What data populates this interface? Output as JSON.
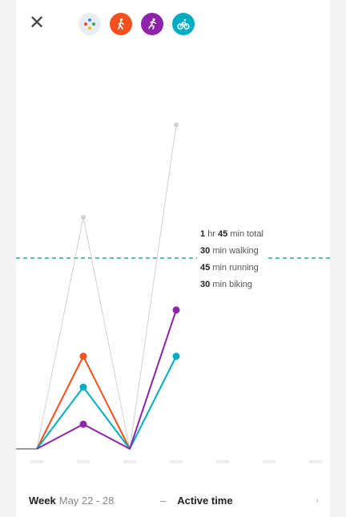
{
  "header": {
    "close_glyph": "✕",
    "filters": [
      {
        "name": "all-activities",
        "color": "#e8edf3",
        "icon": "dots-icon"
      },
      {
        "name": "walking",
        "color": "#f4511e",
        "icon": "walking-icon"
      },
      {
        "name": "running",
        "color": "#8e24aa",
        "icon": "running-icon"
      },
      {
        "name": "biking",
        "color": "#00acc1",
        "icon": "biking-icon"
      }
    ]
  },
  "chart_data": {
    "type": "line",
    "title": "",
    "xlabel": "",
    "ylabel": "",
    "categories": [
      "",
      "",
      "",
      "",
      "",
      "",
      ""
    ],
    "series": [
      {
        "color": "#f4511e",
        "values": [
          0,
          30,
          0,
          null,
          null,
          null,
          null
        ]
      },
      {
        "color": "#00acc1",
        "values": [
          0,
          20,
          0,
          30,
          null,
          null,
          null
        ]
      },
      {
        "color": "#8e24aa",
        "values": [
          0,
          8,
          0,
          45,
          null,
          null,
          null
        ]
      },
      {
        "color": "#d0d0d0",
        "values": [
          0,
          75,
          0,
          105,
          null,
          null,
          null
        ]
      }
    ],
    "goal_line_color": "#26a69a",
    "grid": false
  },
  "tooltip": {
    "total_value": "1",
    "total_unit": "hr",
    "total_value2": "45",
    "total_suffix": "min total",
    "walking_value": "30",
    "walking_suffix": "min walking",
    "running_value": "45",
    "running_suffix": "min running",
    "biking_value": "30",
    "biking_suffix": "min biking"
  },
  "footer": {
    "period_label": "Week",
    "period_range": "May 22 - 28",
    "dash": "–",
    "metric_label": "Active time",
    "more_glyph": "›"
  }
}
